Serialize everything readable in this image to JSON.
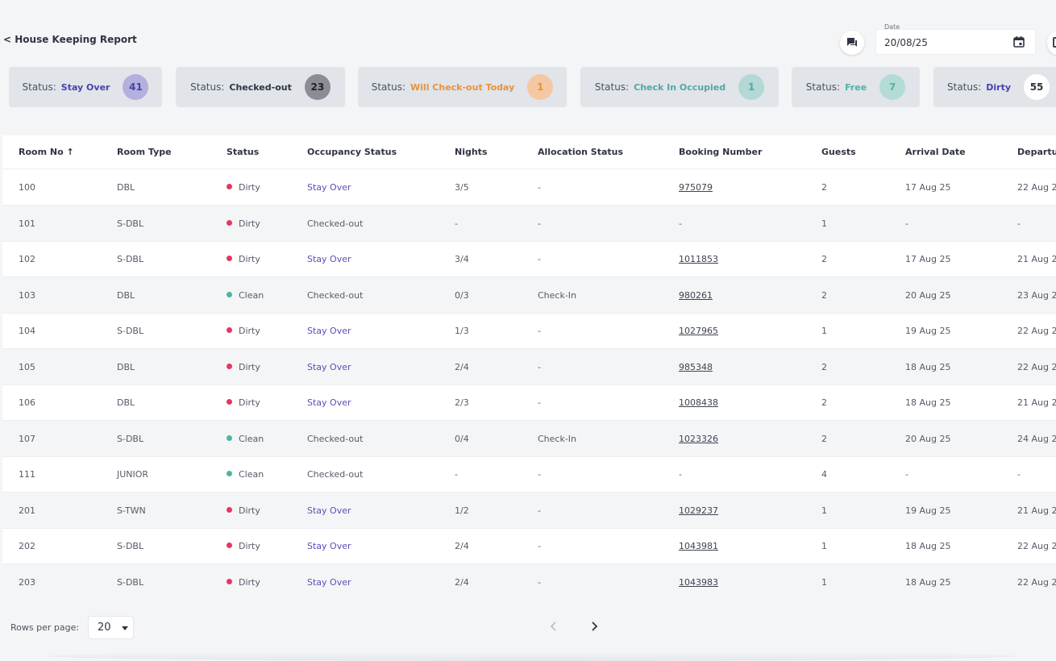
{
  "header": {
    "back_label": "< House Keeping Report",
    "date_label": "Date",
    "date_value": "20/08/25"
  },
  "status_cards": [
    {
      "label": "Status:",
      "value": "Stay Over",
      "count": "41",
      "value_color": "#4b3fb0",
      "badge_bg": "#b3b0dd",
      "badge_color": "#4b3fb0"
    },
    {
      "label": "Status:",
      "value": "Checked-out",
      "count": "23",
      "value_color": "#2f3441",
      "badge_bg": "#8a8d93",
      "badge_color": "#1f2329"
    },
    {
      "label": "Status:",
      "value": "Will Check-out Today",
      "count": "1",
      "value_color": "#e8923a",
      "badge_bg": "#f3c8a3",
      "badge_color": "#e8923a"
    },
    {
      "label": "Status:",
      "value": "Check In Occupied",
      "count": "1",
      "value_color": "#4fa9a2",
      "badge_bg": "#b3d8d5",
      "badge_color": "#4fa9a2"
    },
    {
      "label": "Status:",
      "value": "Free",
      "count": "7",
      "value_color": "#4fb3a6",
      "badge_bg": "#b3dcd6",
      "badge_color": "#4fb3a6"
    },
    {
      "label": "Status:",
      "value": "Dirty",
      "count": "55",
      "value_color": "#4b3fb0",
      "badge_bg": "#ffffff",
      "badge_color": "#2f3441"
    }
  ],
  "table": {
    "columns": [
      "Room No ↑",
      "Room Type",
      "Status",
      "Occupancy Status",
      "Nights",
      "Allocation Status",
      "Booking Number",
      "Guests",
      "Arrival Date",
      "Departu"
    ],
    "rows": [
      [
        "100",
        "DBL",
        "Dirty",
        "Stay Over",
        "3/5",
        "-",
        "975079",
        "2",
        "17 Aug 25",
        "22 Aug 2"
      ],
      [
        "101",
        "S-DBL",
        "Dirty",
        "Checked-out",
        "-",
        "-",
        "-",
        "1",
        "-",
        "-"
      ],
      [
        "102",
        "S-DBL",
        "Dirty",
        "Stay Over",
        "3/4",
        "-",
        "1011853",
        "2",
        "17 Aug 25",
        "21 Aug 25"
      ],
      [
        "103",
        "DBL",
        "Clean",
        "Checked-out",
        "0/3",
        "Check-In",
        "980261",
        "2",
        "20 Aug 25",
        "23 Aug 2"
      ],
      [
        "104",
        "S-DBL",
        "Dirty",
        "Stay Over",
        "1/3",
        "-",
        "1027965",
        "1",
        "19 Aug 25",
        "22 Aug 2"
      ],
      [
        "105",
        "DBL",
        "Dirty",
        "Stay Over",
        "2/4",
        "-",
        "985348",
        "2",
        "18 Aug 25",
        "22 Aug 2"
      ],
      [
        "106",
        "DBL",
        "Dirty",
        "Stay Over",
        "2/3",
        "-",
        "1008438",
        "2",
        "18 Aug 25",
        "21 Aug 25"
      ],
      [
        "107",
        "S-DBL",
        "Clean",
        "Checked-out",
        "0/4",
        "Check-In",
        "1023326",
        "2",
        "20 Aug 25",
        "24 Aug 2"
      ],
      [
        "111",
        "JUNIOR",
        "Clean",
        "Checked-out",
        "-",
        "-",
        "-",
        "4",
        "-",
        "-"
      ],
      [
        "201",
        "S-TWN",
        "Dirty",
        "Stay Over",
        "1/2",
        "-",
        "1029237",
        "1",
        "19 Aug 25",
        "21 Aug 25"
      ],
      [
        "202",
        "S-DBL",
        "Dirty",
        "Stay Over",
        "2/4",
        "-",
        "1043981",
        "1",
        "18 Aug 25",
        "22 Aug 2"
      ],
      [
        "203",
        "S-DBL",
        "Dirty",
        "Stay Over",
        "2/4",
        "-",
        "1043983",
        "1",
        "18 Aug 25",
        "22 Aug 2"
      ]
    ]
  },
  "colors": {
    "dirty": "#e8365d",
    "clean": "#4fb3a6",
    "stay_over": "#5a4fb8"
  },
  "footer": {
    "rows_per_page_label": "Rows per page:",
    "rows_per_page_value": "20",
    "prev_icon": "chevron-left-icon",
    "next_icon": "chevron-right-icon"
  }
}
